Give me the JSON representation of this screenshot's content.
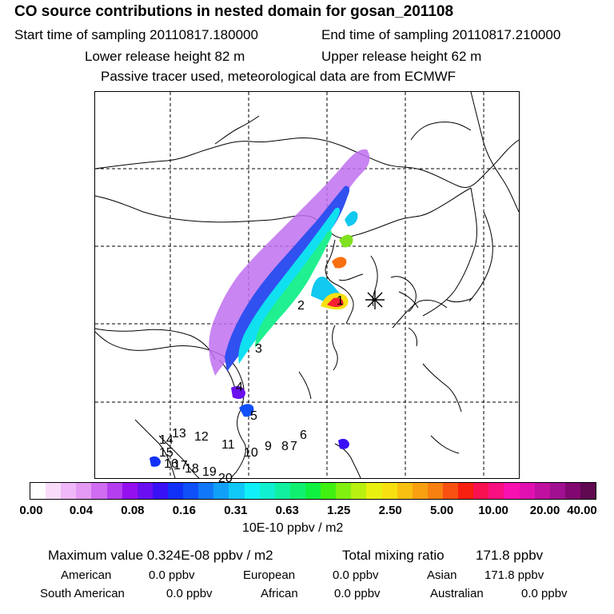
{
  "header": {
    "title": "CO  source contributions in nested domain for gosan_201108",
    "start_time": "Start time of sampling 20110817.180000",
    "end_time": "End time of sampling 20110817.210000",
    "lower_release": "Lower release height   82 m",
    "upper_release": "Upper release height   62 m",
    "description": "Passive tracer used, meteorological data are from ECMWF"
  },
  "map": {
    "receptor_marker": "asterisk",
    "region_labels": [
      "1",
      "2",
      "3",
      "4",
      "5",
      "6",
      "7",
      "8",
      "9",
      "10",
      "11",
      "12",
      "13",
      "14",
      "15",
      "16",
      "17",
      "18",
      "19",
      "20"
    ]
  },
  "colorbar": {
    "colors": [
      "#ffffff",
      "#f9dcf9",
      "#f0b8f8",
      "#e49af5",
      "#d06cf2",
      "#b53ff0",
      "#9410ee",
      "#6a10f0",
      "#3a10f4",
      "#1030f8",
      "#1050f8",
      "#1078f8",
      "#10a0f8",
      "#10c8f8",
      "#10f0f8",
      "#10f0d0",
      "#10f0a0",
      "#10f070",
      "#10f040",
      "#40f010",
      "#80f010",
      "#b8f010",
      "#e8f010",
      "#f8e010",
      "#f8c010",
      "#f8a010",
      "#f88010",
      "#f85010",
      "#f82010",
      "#f81050",
      "#f81080",
      "#f810b0",
      "#e010b0",
      "#c010a0",
      "#a01090",
      "#800870",
      "#600850"
    ],
    "tick_labels": [
      "0.00",
      "0.04",
      "0.08",
      "0.16",
      "0.31",
      "0.63",
      "1.25",
      "2.50",
      "5.00",
      "10.00",
      "20.00",
      "40.00"
    ],
    "unit": "10E-10 ppbv / m2"
  },
  "summary": {
    "max_value": "Maximum value  0.324E-08 ppbv / m2",
    "total_label": "Total mixing ratio",
    "total_value": "171.8 ppbv",
    "rows": [
      [
        {
          "label": "American",
          "value": "0.0 ppbv"
        },
        {
          "label": "European",
          "value": "0.0 ppbv"
        },
        {
          "label": "Asian",
          "value": "171.8 ppbv"
        }
      ],
      [
        {
          "label": "South American",
          "value": "0.0 ppbv"
        },
        {
          "label": "African",
          "value": "0.0 ppbv"
        },
        {
          "label": "Australian",
          "value": "0.0 ppbv"
        }
      ]
    ]
  }
}
